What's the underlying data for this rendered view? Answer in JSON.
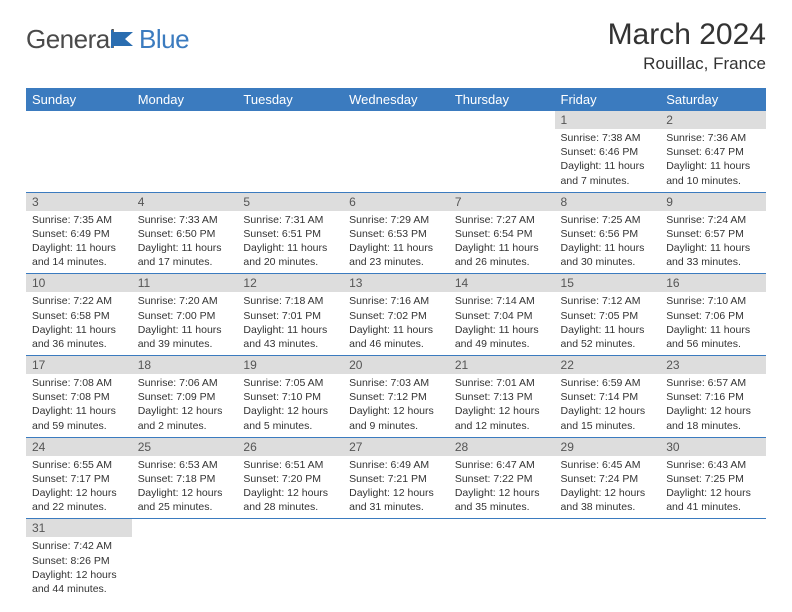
{
  "brand": {
    "part1": "General",
    "part2": "Blue"
  },
  "title": "March 2024",
  "location": "Rouillac, France",
  "colors": {
    "header_bg": "#3b7bbf",
    "header_text": "#ffffff",
    "daynum_bg": "#dddddd",
    "daynum_text": "#555555",
    "cell_text": "#333333",
    "rule": "#3b7bbf",
    "logo_gray": "#4a4a4a",
    "logo_blue": "#3b7bbf",
    "page_bg": "#ffffff"
  },
  "typography": {
    "title_size": 30,
    "location_size": 17,
    "dayhead_size": 13,
    "daynum_size": 12,
    "detail_size": 10.5,
    "logo_size": 26
  },
  "layout": {
    "columns": 7,
    "col_width_pct": 14.28
  },
  "day_names": [
    "Sunday",
    "Monday",
    "Tuesday",
    "Wednesday",
    "Thursday",
    "Friday",
    "Saturday"
  ],
  "weeks": [
    [
      null,
      null,
      null,
      null,
      null,
      {
        "n": "1",
        "sr": "Sunrise: 7:38 AM",
        "ss": "Sunset: 6:46 PM",
        "dl": "Daylight: 11 hours and 7 minutes."
      },
      {
        "n": "2",
        "sr": "Sunrise: 7:36 AM",
        "ss": "Sunset: 6:47 PM",
        "dl": "Daylight: 11 hours and 10 minutes."
      }
    ],
    [
      {
        "n": "3",
        "sr": "Sunrise: 7:35 AM",
        "ss": "Sunset: 6:49 PM",
        "dl": "Daylight: 11 hours and 14 minutes."
      },
      {
        "n": "4",
        "sr": "Sunrise: 7:33 AM",
        "ss": "Sunset: 6:50 PM",
        "dl": "Daylight: 11 hours and 17 minutes."
      },
      {
        "n": "5",
        "sr": "Sunrise: 7:31 AM",
        "ss": "Sunset: 6:51 PM",
        "dl": "Daylight: 11 hours and 20 minutes."
      },
      {
        "n": "6",
        "sr": "Sunrise: 7:29 AM",
        "ss": "Sunset: 6:53 PM",
        "dl": "Daylight: 11 hours and 23 minutes."
      },
      {
        "n": "7",
        "sr": "Sunrise: 7:27 AM",
        "ss": "Sunset: 6:54 PM",
        "dl": "Daylight: 11 hours and 26 minutes."
      },
      {
        "n": "8",
        "sr": "Sunrise: 7:25 AM",
        "ss": "Sunset: 6:56 PM",
        "dl": "Daylight: 11 hours and 30 minutes."
      },
      {
        "n": "9",
        "sr": "Sunrise: 7:24 AM",
        "ss": "Sunset: 6:57 PM",
        "dl": "Daylight: 11 hours and 33 minutes."
      }
    ],
    [
      {
        "n": "10",
        "sr": "Sunrise: 7:22 AM",
        "ss": "Sunset: 6:58 PM",
        "dl": "Daylight: 11 hours and 36 minutes."
      },
      {
        "n": "11",
        "sr": "Sunrise: 7:20 AM",
        "ss": "Sunset: 7:00 PM",
        "dl": "Daylight: 11 hours and 39 minutes."
      },
      {
        "n": "12",
        "sr": "Sunrise: 7:18 AM",
        "ss": "Sunset: 7:01 PM",
        "dl": "Daylight: 11 hours and 43 minutes."
      },
      {
        "n": "13",
        "sr": "Sunrise: 7:16 AM",
        "ss": "Sunset: 7:02 PM",
        "dl": "Daylight: 11 hours and 46 minutes."
      },
      {
        "n": "14",
        "sr": "Sunrise: 7:14 AM",
        "ss": "Sunset: 7:04 PM",
        "dl": "Daylight: 11 hours and 49 minutes."
      },
      {
        "n": "15",
        "sr": "Sunrise: 7:12 AM",
        "ss": "Sunset: 7:05 PM",
        "dl": "Daylight: 11 hours and 52 minutes."
      },
      {
        "n": "16",
        "sr": "Sunrise: 7:10 AM",
        "ss": "Sunset: 7:06 PM",
        "dl": "Daylight: 11 hours and 56 minutes."
      }
    ],
    [
      {
        "n": "17",
        "sr": "Sunrise: 7:08 AM",
        "ss": "Sunset: 7:08 PM",
        "dl": "Daylight: 11 hours and 59 minutes."
      },
      {
        "n": "18",
        "sr": "Sunrise: 7:06 AM",
        "ss": "Sunset: 7:09 PM",
        "dl": "Daylight: 12 hours and 2 minutes."
      },
      {
        "n": "19",
        "sr": "Sunrise: 7:05 AM",
        "ss": "Sunset: 7:10 PM",
        "dl": "Daylight: 12 hours and 5 minutes."
      },
      {
        "n": "20",
        "sr": "Sunrise: 7:03 AM",
        "ss": "Sunset: 7:12 PM",
        "dl": "Daylight: 12 hours and 9 minutes."
      },
      {
        "n": "21",
        "sr": "Sunrise: 7:01 AM",
        "ss": "Sunset: 7:13 PM",
        "dl": "Daylight: 12 hours and 12 minutes."
      },
      {
        "n": "22",
        "sr": "Sunrise: 6:59 AM",
        "ss": "Sunset: 7:14 PM",
        "dl": "Daylight: 12 hours and 15 minutes."
      },
      {
        "n": "23",
        "sr": "Sunrise: 6:57 AM",
        "ss": "Sunset: 7:16 PM",
        "dl": "Daylight: 12 hours and 18 minutes."
      }
    ],
    [
      {
        "n": "24",
        "sr": "Sunrise: 6:55 AM",
        "ss": "Sunset: 7:17 PM",
        "dl": "Daylight: 12 hours and 22 minutes."
      },
      {
        "n": "25",
        "sr": "Sunrise: 6:53 AM",
        "ss": "Sunset: 7:18 PM",
        "dl": "Daylight: 12 hours and 25 minutes."
      },
      {
        "n": "26",
        "sr": "Sunrise: 6:51 AM",
        "ss": "Sunset: 7:20 PM",
        "dl": "Daylight: 12 hours and 28 minutes."
      },
      {
        "n": "27",
        "sr": "Sunrise: 6:49 AM",
        "ss": "Sunset: 7:21 PM",
        "dl": "Daylight: 12 hours and 31 minutes."
      },
      {
        "n": "28",
        "sr": "Sunrise: 6:47 AM",
        "ss": "Sunset: 7:22 PM",
        "dl": "Daylight: 12 hours and 35 minutes."
      },
      {
        "n": "29",
        "sr": "Sunrise: 6:45 AM",
        "ss": "Sunset: 7:24 PM",
        "dl": "Daylight: 12 hours and 38 minutes."
      },
      {
        "n": "30",
        "sr": "Sunrise: 6:43 AM",
        "ss": "Sunset: 7:25 PM",
        "dl": "Daylight: 12 hours and 41 minutes."
      }
    ],
    [
      {
        "n": "31",
        "sr": "Sunrise: 7:42 AM",
        "ss": "Sunset: 8:26 PM",
        "dl": "Daylight: 12 hours and 44 minutes."
      },
      null,
      null,
      null,
      null,
      null,
      null
    ]
  ]
}
